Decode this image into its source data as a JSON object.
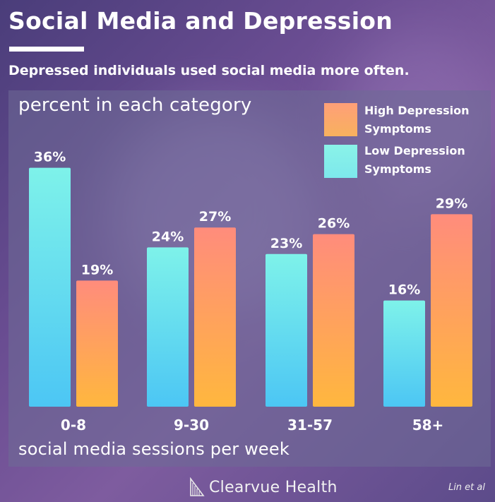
{
  "title": "Social Media and Depression",
  "subtitle": "Depressed individuals used social media more often.",
  "chart_data": {
    "type": "bar",
    "categories": [
      "0-8",
      "9-30",
      "31-57",
      "58+"
    ],
    "series": [
      {
        "name": "Low Depression Symptoms",
        "values": [
          36,
          24,
          23,
          16
        ],
        "labels": [
          "36%",
          "24%",
          "23%",
          "16%"
        ]
      },
      {
        "name": "High Depression Symptoms",
        "values": [
          19,
          27,
          26,
          29
        ],
        "labels": [
          "19%",
          "27%",
          "26%",
          "29%"
        ]
      }
    ],
    "ylabel": "percent in each category",
    "xlabel": "social media sessions per week",
    "ylim": [
      0,
      40
    ],
    "legend": {
      "placement": "top-right",
      "items": [
        {
          "line1": "High Depression",
          "line2": "Symptoms",
          "series": "High Depression Symptoms"
        },
        {
          "line1": "Low Depression",
          "line2": "Symptoms",
          "series": "Low Depression Symptoms"
        }
      ]
    },
    "grid": false,
    "colors": {
      "low": [
        "#7ef2ea",
        "#4cc6f4"
      ],
      "high": [
        "#ff8c7c",
        "#ffb73e"
      ]
    }
  },
  "footer": {
    "brand": "Clearvue Health",
    "source": "Lin et al"
  }
}
